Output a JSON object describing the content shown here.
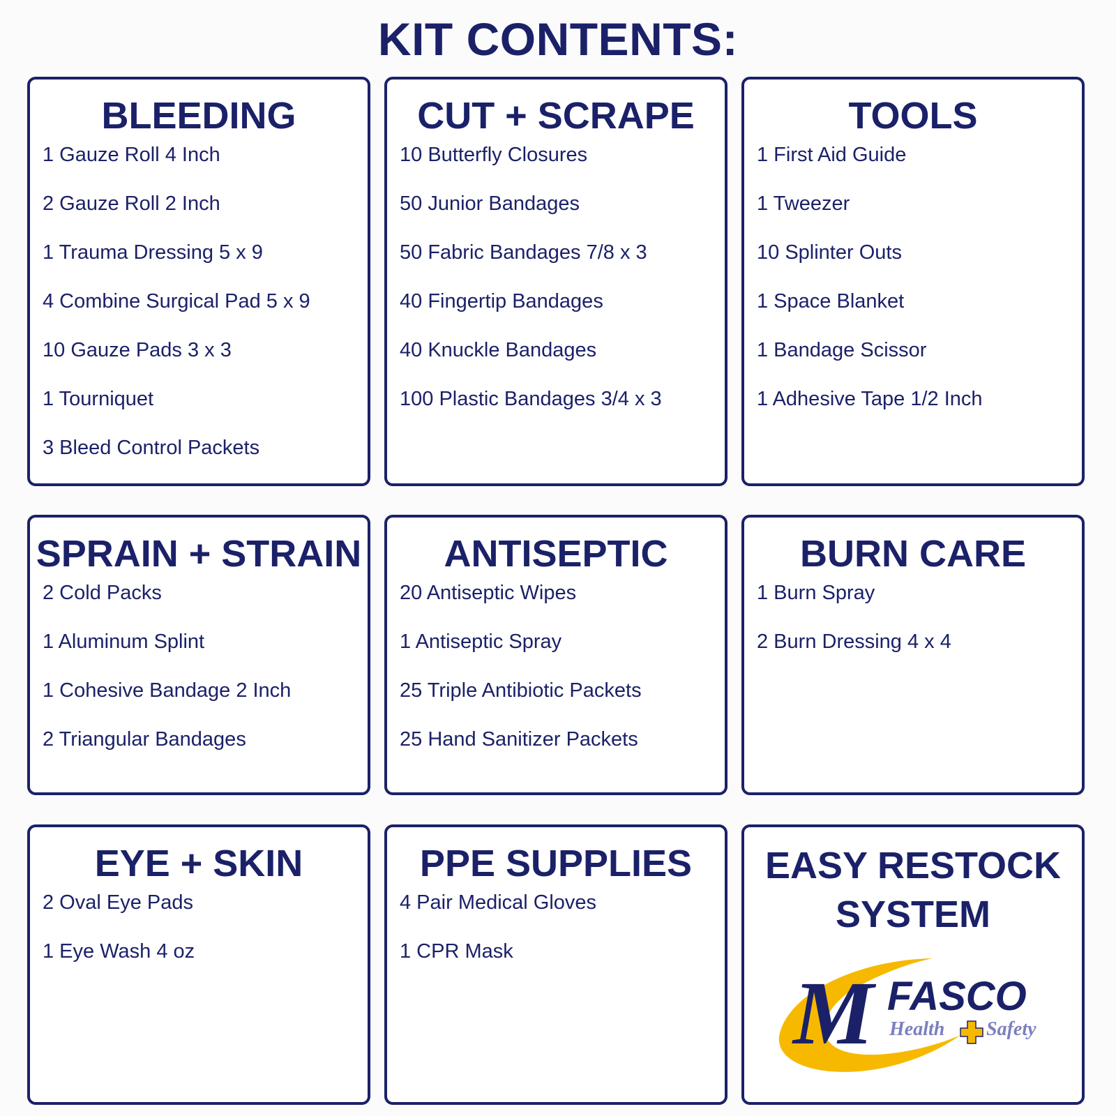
{
  "title": "KIT CONTENTS:",
  "sections": [
    {
      "heading": "BLEEDING",
      "items": [
        "1 Gauze Roll 4 Inch",
        "2 Gauze Roll 2 Inch",
        "1 Trauma Dressing 5 x 9",
        "4 Combine Surgical Pad 5 x 9",
        "10 Gauze Pads 3 x 3",
        "1 Tourniquet",
        "3 Bleed Control Packets"
      ]
    },
    {
      "heading": "CUT + SCRAPE",
      "items": [
        "10 Butterfly Closures",
        "50 Junior Bandages",
        "50 Fabric Bandages 7/8 x 3",
        "40 Fingertip Bandages",
        "40 Knuckle Bandages",
        "100 Plastic Bandages 3/4 x 3"
      ]
    },
    {
      "heading": "TOOLS",
      "items": [
        "1 First Aid Guide",
        "1 Tweezer",
        "10 Splinter Outs",
        "1 Space Blanket",
        "1 Bandage Scissor",
        "1 Adhesive Tape 1/2 Inch"
      ]
    },
    {
      "heading": "SPRAIN + STRAIN",
      "items": [
        "2 Cold Packs",
        "1 Aluminum Splint",
        "1 Cohesive Bandage 2 Inch",
        "2 Triangular Bandages"
      ]
    },
    {
      "heading": "ANTISEPTIC",
      "items": [
        "20 Antiseptic Wipes",
        "1 Antiseptic Spray",
        "25 Triple Antibiotic Packets",
        "25 Hand Sanitizer Packets"
      ]
    },
    {
      "heading": "BURN CARE",
      "items": [
        "1 Burn Spray",
        "2 Burn Dressing 4 x 4"
      ]
    },
    {
      "heading": "EYE + SKIN",
      "items": [
        "2 Oval Eye Pads",
        "1 Eye Wash 4 oz"
      ]
    },
    {
      "heading": "PPE SUPPLIES",
      "items": [
        "4 Pair Medical Gloves",
        "1 CPR Mask"
      ]
    }
  ],
  "restock": {
    "heading_line1": "EASY RESTOCK",
    "heading_line2": "SYSTEM",
    "logo": {
      "mark": "M",
      "name": "FASCO",
      "tagline_left": "Health",
      "tagline_right": "Safety"
    }
  },
  "colors": {
    "navy": "#1b2168",
    "gold": "#f7b900",
    "lavender": "#7b7fbf"
  }
}
